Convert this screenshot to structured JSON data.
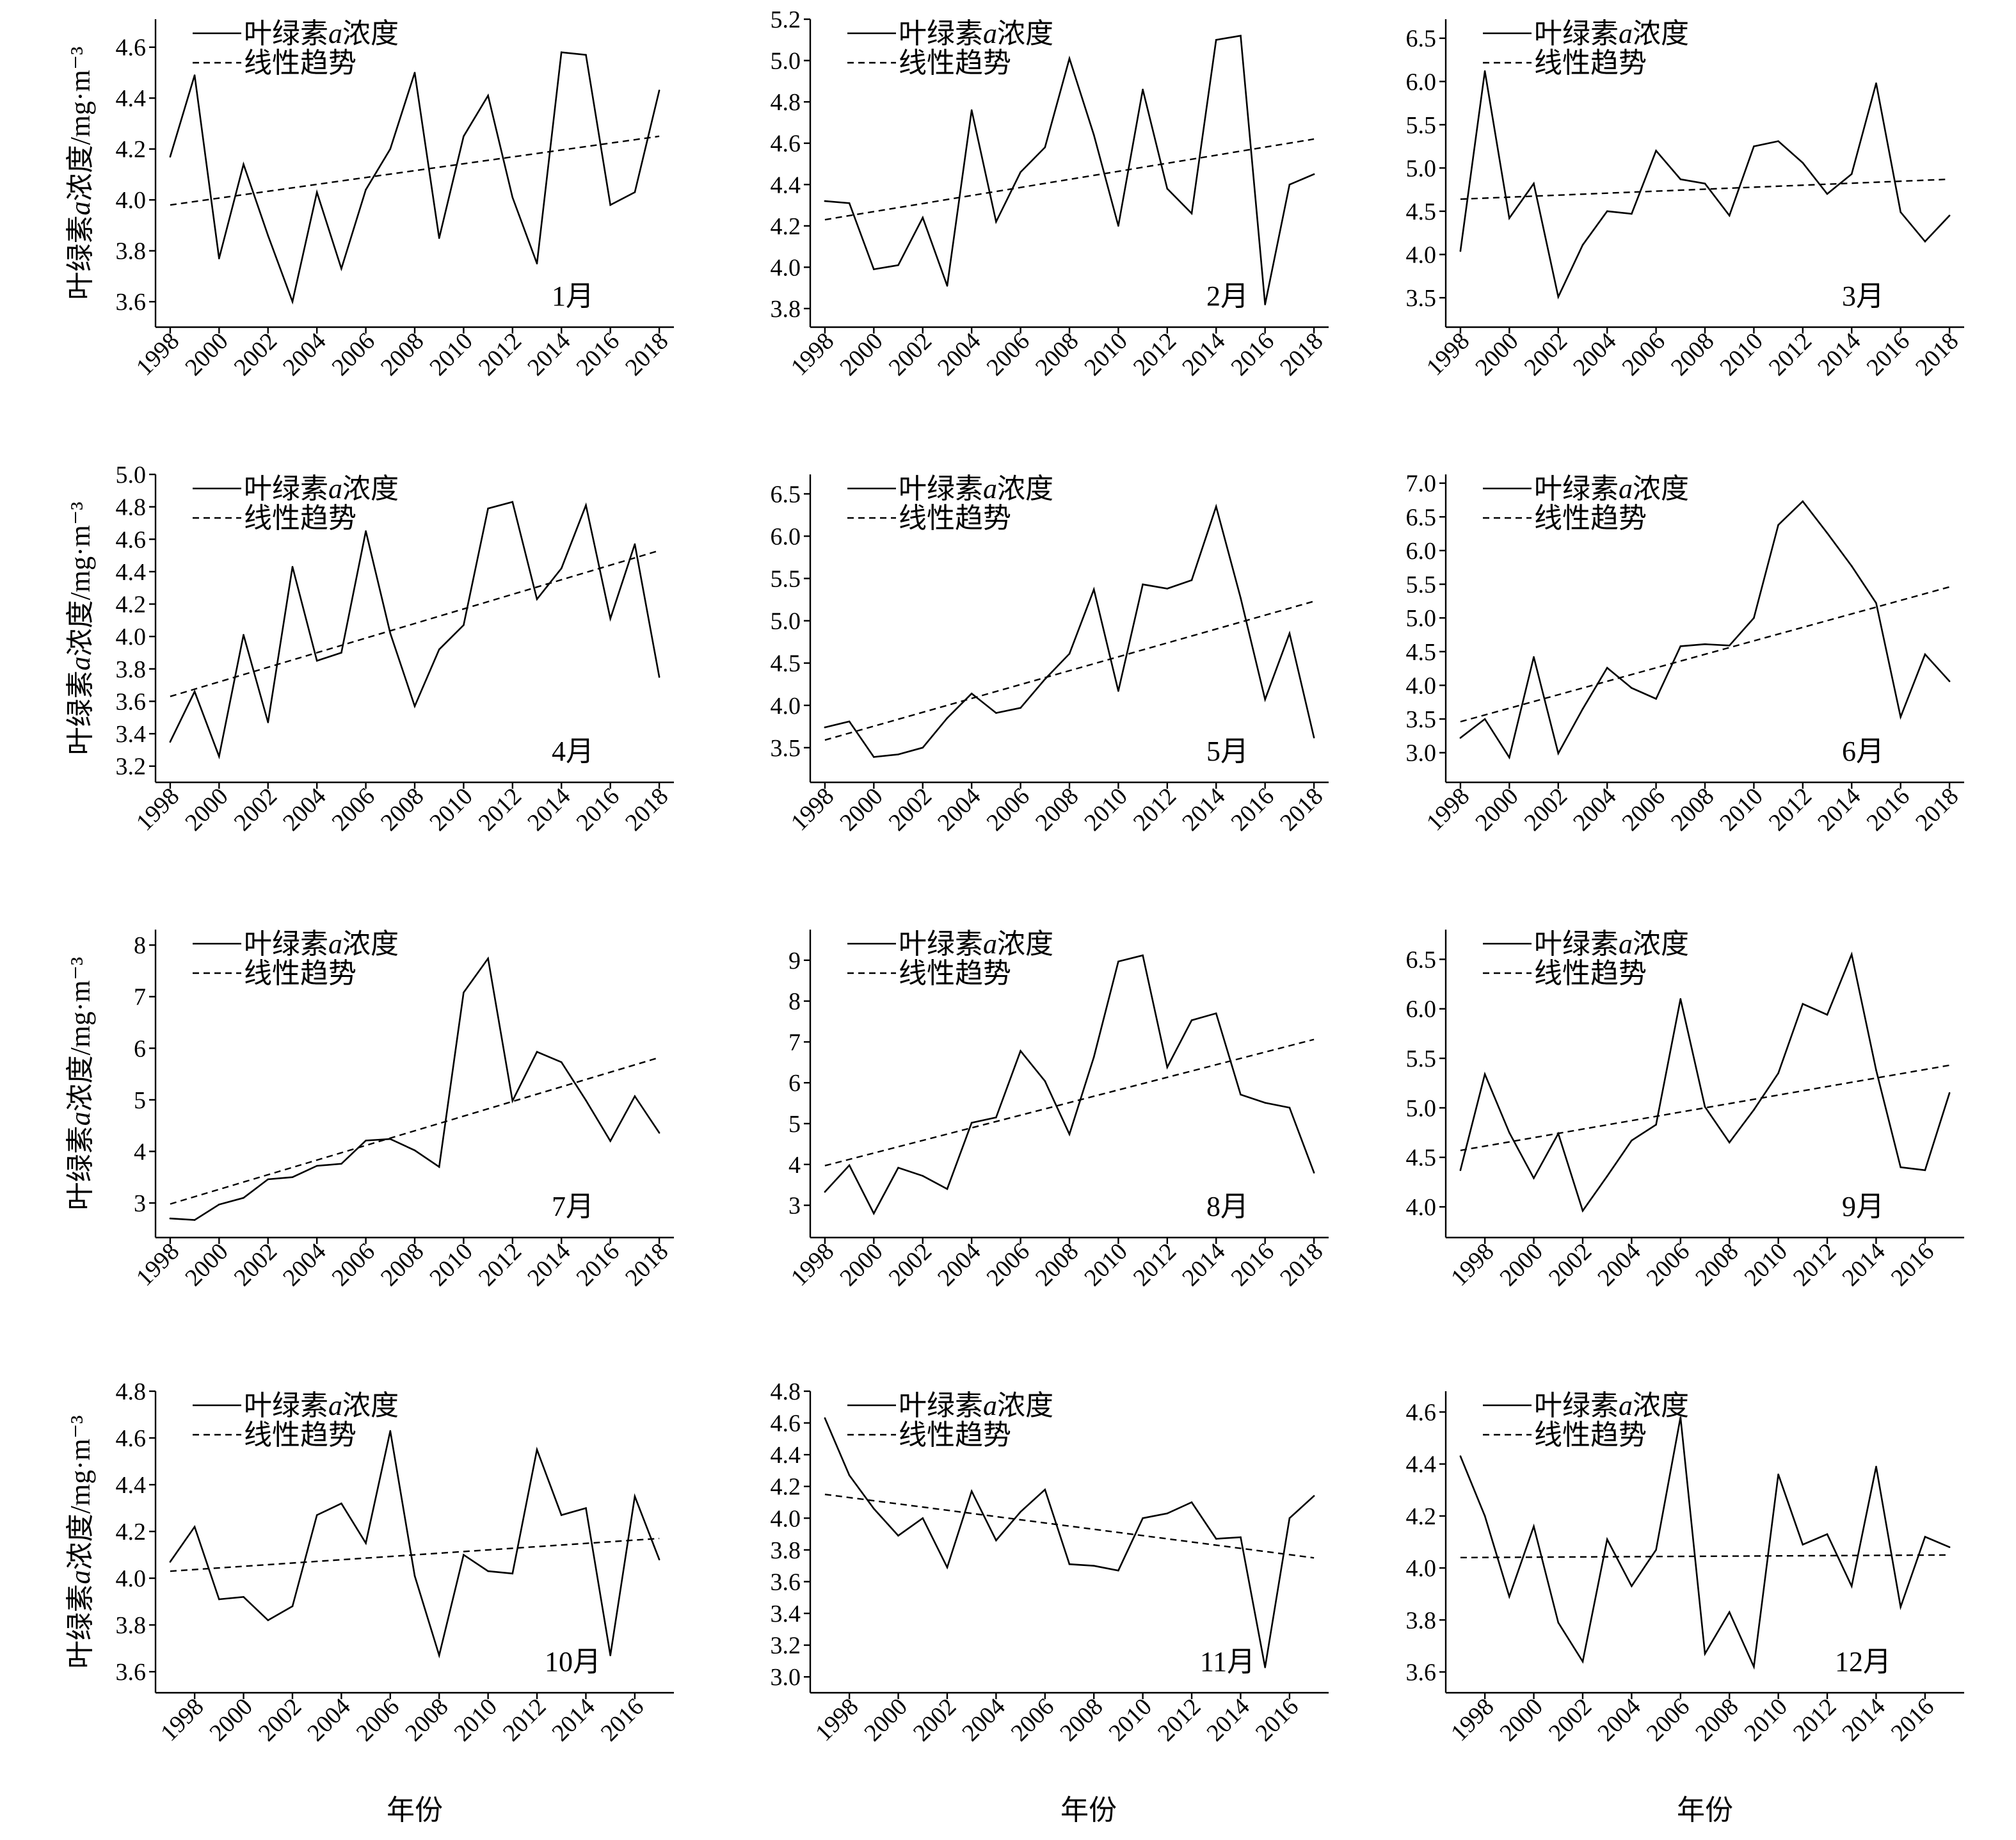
{
  "chart_data": [
    {
      "type": "line",
      "panel_label": "1月",
      "ylabel": "叶绿素a浓度/mg·m⁻³",
      "x": [
        1998,
        1999,
        2000,
        2001,
        2002,
        2003,
        2004,
        2005,
        2006,
        2007,
        2008,
        2009,
        2010,
        2011,
        2012,
        2013,
        2014,
        2015,
        2016,
        2017,
        2018
      ],
      "series": [
        {
          "name": "叶绿素a浓度",
          "values": [
            4.17,
            4.49,
            3.77,
            4.14,
            3.86,
            3.6,
            4.03,
            3.73,
            4.04,
            4.2,
            4.5,
            3.85,
            4.25,
            4.41,
            4.01,
            3.75,
            4.58,
            4.57,
            3.98,
            4.03,
            4.43
          ]
        },
        {
          "name": "线性趋势",
          "x": [
            1998,
            2018
          ],
          "values": [
            3.98,
            4.25
          ]
        }
      ],
      "xlim": [
        1997.4,
        2018.6
      ],
      "ylim": [
        3.5,
        4.71
      ],
      "xticks": [
        "1998",
        "2000",
        "2002",
        "2004",
        "2006",
        "2008",
        "2010",
        "2012",
        "2014",
        "2016",
        "2018"
      ],
      "yticks": [
        "3.6",
        "3.8",
        "4.0",
        "4.2",
        "4.4",
        "4.6"
      ],
      "legend": "top-left",
      "grid": false
    },
    {
      "type": "line",
      "panel_label": "2月",
      "x": [
        1998,
        1999,
        2000,
        2001,
        2002,
        2003,
        2004,
        2005,
        2006,
        2007,
        2008,
        2009,
        2010,
        2011,
        2012,
        2013,
        2014,
        2015,
        2016,
        2017,
        2018
      ],
      "series": [
        {
          "name": "叶绿素a浓度",
          "values": [
            4.32,
            4.31,
            3.99,
            4.01,
            4.24,
            3.91,
            4.76,
            4.22,
            4.46,
            4.58,
            5.01,
            4.64,
            4.2,
            4.86,
            4.38,
            4.26,
            5.1,
            5.12,
            3.82,
            4.4,
            4.45
          ]
        },
        {
          "name": "线性趋势",
          "x": [
            1998,
            2018
          ],
          "values": [
            4.23,
            4.62
          ]
        }
      ],
      "xlim": [
        1997.4,
        2018.6
      ],
      "ylim": [
        3.71,
        5.2
      ],
      "xticks": [
        "1998",
        "2000",
        "2002",
        "2004",
        "2006",
        "2008",
        "2010",
        "2012",
        "2014",
        "2016",
        "2018"
      ],
      "yticks": [
        "3.8",
        "4.0",
        "4.2",
        "4.4",
        "4.6",
        "4.8",
        "5.0",
        "5.2"
      ],
      "legend": "top-left",
      "grid": false
    },
    {
      "type": "line",
      "panel_label": "3月",
      "x": [
        1998,
        1999,
        2000,
        2001,
        2002,
        2003,
        2004,
        2005,
        2006,
        2007,
        2008,
        2009,
        2010,
        2011,
        2012,
        2013,
        2014,
        2015,
        2016,
        2017,
        2018
      ],
      "series": [
        {
          "name": "叶绿素a浓度",
          "values": [
            4.04,
            6.12,
            4.42,
            4.82,
            3.51,
            4.11,
            4.5,
            4.47,
            5.2,
            4.87,
            4.82,
            4.45,
            5.25,
            5.31,
            5.06,
            4.7,
            4.93,
            5.98,
            4.49,
            4.15,
            4.45
          ]
        },
        {
          "name": "线性趋势",
          "x": [
            1998,
            2018
          ],
          "values": [
            4.64,
            4.87
          ]
        }
      ],
      "xlim": [
        1997.4,
        2018.6
      ],
      "ylim": [
        3.16,
        6.72
      ],
      "xticks": [
        "1998",
        "2000",
        "2002",
        "2004",
        "2006",
        "2008",
        "2010",
        "2012",
        "2014",
        "2016",
        "2018"
      ],
      "yticks": [
        "3.5",
        "4.0",
        "4.5",
        "5.0",
        "5.5",
        "6.0",
        "6.5"
      ],
      "legend": "top-left",
      "grid": false
    },
    {
      "type": "line",
      "panel_label": "4月",
      "ylabel": "叶绿素a浓度/mg·m⁻³",
      "x": [
        1998,
        1999,
        2000,
        2001,
        2002,
        2003,
        2004,
        2005,
        2006,
        2007,
        2008,
        2009,
        2010,
        2011,
        2012,
        2013,
        2014,
        2015,
        2016,
        2017,
        2018
      ],
      "series": [
        {
          "name": "叶绿素a浓度",
          "values": [
            3.35,
            3.66,
            3.26,
            4.01,
            3.47,
            4.43,
            3.85,
            3.9,
            4.65,
            4.02,
            3.57,
            3.92,
            4.07,
            4.79,
            4.83,
            4.23,
            4.42,
            4.81,
            4.11,
            4.57,
            3.75
          ]
        },
        {
          "name": "线性趋势",
          "x": [
            1998,
            2018
          ],
          "values": [
            3.63,
            4.53
          ]
        }
      ],
      "xlim": [
        1997.4,
        2018.6
      ],
      "ylim": [
        3.1,
        5.0
      ],
      "xticks": [
        "1998",
        "2000",
        "2002",
        "2004",
        "2006",
        "2008",
        "2010",
        "2012",
        "2014",
        "2016",
        "2018"
      ],
      "yticks": [
        "3.2",
        "3.4",
        "3.6",
        "3.8",
        "4.0",
        "4.2",
        "4.4",
        "4.6",
        "4.8",
        "5.0"
      ],
      "legend": "top-left",
      "grid": false
    },
    {
      "type": "line",
      "panel_label": "5月",
      "x": [
        1998,
        1999,
        2000,
        2001,
        2002,
        2003,
        2004,
        2005,
        2006,
        2007,
        2008,
        2009,
        2010,
        2011,
        2012,
        2013,
        2014,
        2015,
        2016,
        2017,
        2018
      ],
      "series": [
        {
          "name": "叶绿素a浓度",
          "values": [
            3.74,
            3.81,
            3.39,
            3.42,
            3.5,
            3.85,
            4.14,
            3.91,
            3.97,
            4.31,
            4.61,
            5.37,
            4.17,
            5.43,
            5.38,
            5.48,
            6.35,
            5.27,
            4.07,
            4.85,
            3.62
          ]
        },
        {
          "name": "线性趋势",
          "x": [
            1998,
            2018
          ],
          "values": [
            3.59,
            5.23
          ]
        }
      ],
      "xlim": [
        1997.4,
        2018.6
      ],
      "ylim": [
        3.09,
        6.73
      ],
      "xticks": [
        "1998",
        "2000",
        "2002",
        "2004",
        "2006",
        "2008",
        "2010",
        "2012",
        "2014",
        "2016",
        "2018"
      ],
      "yticks": [
        "3.5",
        "4.0",
        "4.5",
        "5.0",
        "5.5",
        "6.0",
        "6.5"
      ],
      "legend": "top-left",
      "grid": false
    },
    {
      "type": "line",
      "panel_label": "6月",
      "x": [
        1998,
        1999,
        2000,
        2001,
        2002,
        2003,
        2004,
        2005,
        2006,
        2007,
        2008,
        2009,
        2010,
        2011,
        2012,
        2013,
        2014,
        2015,
        2016,
        2017,
        2018
      ],
      "series": [
        {
          "name": "叶绿素a浓度",
          "values": [
            3.22,
            3.5,
            2.93,
            4.42,
            2.99,
            3.65,
            4.26,
            3.96,
            3.8,
            4.58,
            4.61,
            4.59,
            5.0,
            6.38,
            6.73,
            6.26,
            5.77,
            5.22,
            3.53,
            4.46,
            4.06
          ]
        },
        {
          "name": "线性趋势",
          "x": [
            1998,
            2018
          ],
          "values": [
            3.46,
            5.46
          ]
        }
      ],
      "xlim": [
        1997.4,
        2018.6
      ],
      "ylim": [
        2.56,
        7.13
      ],
      "xticks": [
        "1998",
        "2000",
        "2002",
        "2004",
        "2006",
        "2008",
        "2010",
        "2012",
        "2014",
        "2016",
        "2018"
      ],
      "yticks": [
        "3.0",
        "3.5",
        "4.0",
        "4.5",
        "5.0",
        "5.5",
        "6.0",
        "6.5",
        "7.0"
      ],
      "legend": "top-left",
      "grid": false
    },
    {
      "type": "line",
      "panel_label": "7月",
      "ylabel": "叶绿素a浓度/mg·m⁻³",
      "x": [
        1998,
        1999,
        2000,
        2001,
        2002,
        2003,
        2004,
        2005,
        2006,
        2007,
        2008,
        2009,
        2010,
        2011,
        2012,
        2013,
        2014,
        2015,
        2016,
        2017,
        2018
      ],
      "series": [
        {
          "name": "叶绿素a浓度",
          "values": [
            2.7,
            2.67,
            2.97,
            3.1,
            3.46,
            3.5,
            3.72,
            3.76,
            4.21,
            4.24,
            4.02,
            3.7,
            7.08,
            7.74,
            4.98,
            5.93,
            5.73,
            4.99,
            4.2,
            5.07,
            4.36
          ]
        },
        {
          "name": "线性趋势",
          "x": [
            1998,
            2018
          ],
          "values": [
            2.98,
            5.82
          ]
        }
      ],
      "xlim": [
        1997.4,
        2018.6
      ],
      "ylim": [
        2.33,
        8.3
      ],
      "xticks": [
        "1998",
        "2000",
        "2002",
        "2004",
        "2006",
        "2008",
        "2010",
        "2012",
        "2014",
        "2016",
        "2018"
      ],
      "yticks": [
        "3",
        "4",
        "5",
        "6",
        "7",
        "8"
      ],
      "legend": "top-left",
      "grid": false
    },
    {
      "type": "line",
      "panel_label": "8月",
      "x": [
        1998,
        1999,
        2000,
        2001,
        2002,
        2003,
        2004,
        2005,
        2006,
        2007,
        2008,
        2009,
        2010,
        2011,
        2012,
        2013,
        2014,
        2015,
        2016,
        2017,
        2018
      ],
      "series": [
        {
          "name": "叶绿素a浓度",
          "values": [
            3.33,
            3.98,
            2.8,
            3.92,
            3.72,
            3.4,
            5.02,
            5.15,
            6.78,
            6.04,
            4.74,
            6.63,
            8.97,
            9.12,
            6.38,
            7.53,
            7.7,
            5.71,
            5.51,
            5.39,
            3.8
          ]
        },
        {
          "name": "线性趋势",
          "x": [
            1998,
            2018
          ],
          "values": [
            3.97,
            7.06
          ]
        }
      ],
      "xlim": [
        1997.4,
        2018.6
      ],
      "ylim": [
        2.21,
        9.75
      ],
      "xticks": [
        "1998",
        "2000",
        "2002",
        "2004",
        "2006",
        "2008",
        "2010",
        "2012",
        "2014",
        "2016",
        "2018"
      ],
      "yticks": [
        "3",
        "4",
        "5",
        "6",
        "7",
        "8",
        "9"
      ],
      "legend": "top-left",
      "grid": false
    },
    {
      "type": "line",
      "panel_label": "9月",
      "x": [
        1997,
        1998,
        1999,
        2000,
        2001,
        2002,
        2003,
        2004,
        2005,
        2006,
        2007,
        2008,
        2009,
        2010,
        2011,
        2012,
        2013,
        2014,
        2015,
        2016,
        2017
      ],
      "series": [
        {
          "name": "叶绿素a浓度",
          "values": [
            4.37,
            5.34,
            4.75,
            4.29,
            4.74,
            3.96,
            4.31,
            4.67,
            4.83,
            6.1,
            5.01,
            4.65,
            4.98,
            5.35,
            6.05,
            5.94,
            6.55,
            5.38,
            4.4,
            4.37,
            5.15
          ]
        },
        {
          "name": "线性趋势",
          "x": [
            1997,
            2017
          ],
          "values": [
            4.57,
            5.43
          ]
        }
      ],
      "xlim": [
        1996.4,
        2017.6
      ],
      "ylim": [
        3.69,
        6.8
      ],
      "xticks": [
        "1998",
        "2000",
        "2002",
        "2004",
        "2006",
        "2008",
        "2010",
        "2012",
        "2014",
        "2016"
      ],
      "yticks": [
        "4.0",
        "4.5",
        "5.0",
        "5.5",
        "6.0",
        "6.5"
      ],
      "legend": "top-left",
      "grid": false
    },
    {
      "type": "line",
      "panel_label": "10月",
      "ylabel": "叶绿素a浓度/mg·m⁻³",
      "xlabel": "年份",
      "x": [
        1997,
        1998,
        1999,
        2000,
        2001,
        2002,
        2003,
        2004,
        2005,
        2006,
        2007,
        2008,
        2009,
        2010,
        2011,
        2012,
        2013,
        2014,
        2015,
        2016,
        2017
      ],
      "series": [
        {
          "name": "叶绿素a浓度",
          "values": [
            4.07,
            4.22,
            3.91,
            3.92,
            3.82,
            3.88,
            4.27,
            4.32,
            4.15,
            4.63,
            4.01,
            3.67,
            4.1,
            4.03,
            4.02,
            4.55,
            4.27,
            4.3,
            3.67,
            4.35,
            4.08
          ]
        },
        {
          "name": "线性趋势",
          "x": [
            1997,
            2017
          ],
          "values": [
            4.03,
            4.17
          ]
        }
      ],
      "xlim": [
        1996.4,
        2017.6
      ],
      "ylim": [
        3.51,
        4.8
      ],
      "xticks": [
        "1998",
        "2000",
        "2002",
        "2004",
        "2006",
        "2008",
        "2010",
        "2012",
        "2014",
        "2016"
      ],
      "yticks": [
        "3.6",
        "3.8",
        "4.0",
        "4.2",
        "4.4",
        "4.6",
        "4.8"
      ],
      "legend": "top-left",
      "grid": false
    },
    {
      "type": "line",
      "panel_label": "11月",
      "xlabel": "年份",
      "x": [
        1997,
        1998,
        1999,
        2000,
        2001,
        2002,
        2003,
        2004,
        2005,
        2006,
        2007,
        2008,
        2009,
        2010,
        2011,
        2012,
        2013,
        2014,
        2015,
        2016,
        2017
      ],
      "series": [
        {
          "name": "叶绿素a浓度",
          "values": [
            4.63,
            4.27,
            4.06,
            3.89,
            4.0,
            3.69,
            4.17,
            3.86,
            4.04,
            4.18,
            3.71,
            3.7,
            3.67,
            4.0,
            4.03,
            4.1,
            3.87,
            3.88,
            3.06,
            4.0,
            4.14
          ]
        },
        {
          "name": "线性趋势",
          "x": [
            1997,
            2017
          ],
          "values": [
            4.15,
            3.75
          ]
        }
      ],
      "xlim": [
        1996.4,
        2017.6
      ],
      "ylim": [
        2.9,
        4.8
      ],
      "xticks": [
        "1998",
        "2000",
        "2002",
        "2004",
        "2006",
        "2008",
        "2010",
        "2012",
        "2014",
        "2016"
      ],
      "yticks": [
        "3.0",
        "3.2",
        "3.4",
        "3.6",
        "3.8",
        "4.0",
        "4.2",
        "4.4",
        "4.6",
        "4.8"
      ],
      "legend": "top-left",
      "grid": false
    },
    {
      "type": "line",
      "panel_label": "12月",
      "xlabel": "年份",
      "x": [
        1997,
        1998,
        1999,
        2000,
        2001,
        2002,
        2003,
        2004,
        2005,
        2006,
        2007,
        2008,
        2009,
        2010,
        2011,
        2012,
        2013,
        2014,
        2015,
        2016,
        2017
      ],
      "series": [
        {
          "name": "叶绿素a浓度",
          "values": [
            4.43,
            4.2,
            3.89,
            4.16,
            3.79,
            3.64,
            4.11,
            3.93,
            4.07,
            4.58,
            3.67,
            3.83,
            3.62,
            4.36,
            4.09,
            4.13,
            3.93,
            4.39,
            3.85,
            4.12,
            4.08
          ]
        },
        {
          "name": "线性趋势",
          "x": [
            1997,
            2017
          ],
          "values": [
            4.04,
            4.05
          ]
        }
      ],
      "xlim": [
        1996.4,
        2017.6
      ],
      "ylim": [
        3.52,
        4.68
      ],
      "xticks": [
        "1998",
        "2000",
        "2002",
        "2004",
        "2006",
        "2008",
        "2010",
        "2012",
        "2014",
        "2016"
      ],
      "yticks": [
        "3.6",
        "3.8",
        "4.0",
        "4.2",
        "4.4",
        "4.6"
      ],
      "legend": "top-left",
      "grid": false
    }
  ]
}
